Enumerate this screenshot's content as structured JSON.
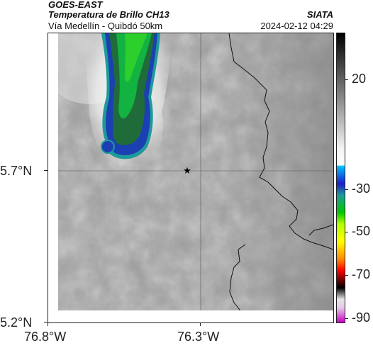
{
  "header": {
    "satellite": "GOES-EAST",
    "product": "Temperatura de Brillo CH13",
    "agency": "SIATA",
    "region": "Vía Medellín - Quibdó 50km",
    "datetime": "2024-02-12 04:29"
  },
  "map": {
    "lat_ticks": [
      "5.7°N",
      "5.2°N"
    ],
    "lon_ticks": [
      "76.8°W",
      "76.3°W"
    ],
    "marker": "star-icon"
  },
  "colorbar": {
    "ticks": [
      "20",
      "-30",
      "-50",
      "-70",
      "-90"
    ],
    "tick_values": [
      20,
      -30,
      -50,
      -70,
      -90
    ],
    "range": [
      -95,
      45
    ],
    "colors": [
      "#000000",
      "#ffffff",
      "#00bfff",
      "#1c1cc8",
      "#00c800",
      "#ffff00",
      "#ff0000",
      "#000000",
      "#ffffff",
      "#c800c8"
    ]
  }
}
